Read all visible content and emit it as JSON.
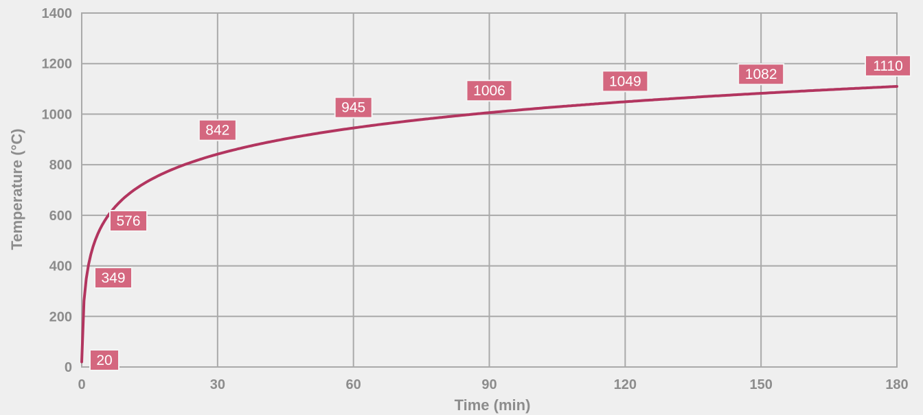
{
  "chart_data": {
    "type": "line",
    "xlabel": "Time (min)",
    "ylabel": "Temperature (°C)",
    "xlim": [
      0,
      180
    ],
    "ylim": [
      0,
      1400
    ],
    "xticks": [
      0,
      30,
      60,
      90,
      120,
      150,
      180
    ],
    "yticks": [
      0,
      200,
      400,
      600,
      800,
      1000,
      1200,
      1400
    ],
    "grid": true,
    "series": [
      {
        "x": [
          0,
          5,
          10,
          15,
          30,
          60,
          90,
          120,
          150,
          180
        ],
        "y": [
          20,
          576,
          678,
          739,
          842,
          945,
          1006,
          1049,
          1082,
          1110
        ],
        "color": "#b2355f"
      }
    ],
    "data_labels": [
      {
        "x": 0,
        "y": 20,
        "text": "20"
      },
      {
        "x": 2,
        "y": 349,
        "text": "349"
      },
      {
        "x": 5,
        "y": 576,
        "text": "576"
      },
      {
        "x": 30,
        "y": 842,
        "text": "842"
      },
      {
        "x": 60,
        "y": 945,
        "text": "945"
      },
      {
        "x": 90,
        "y": 1006,
        "text": "1006"
      },
      {
        "x": 120,
        "y": 1049,
        "text": "1049"
      },
      {
        "x": 150,
        "y": 1082,
        "text": "1082"
      },
      {
        "x": 180,
        "y": 1110,
        "text": "1110"
      }
    ],
    "label_color": "#d4677f"
  }
}
